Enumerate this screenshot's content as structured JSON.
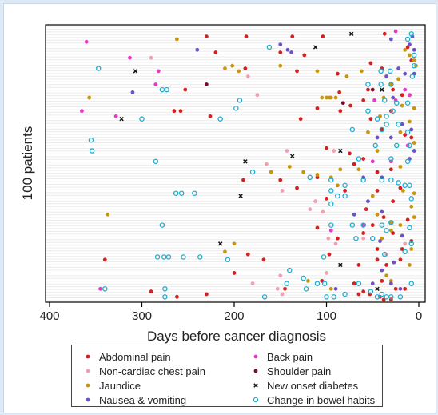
{
  "chart_data": {
    "type": "scatter",
    "xlabel": "Days before cancer diagnosis",
    "ylabel": "100 patients",
    "xlim": [
      0,
      400
    ],
    "x_reversed": true,
    "xticks": [
      "400",
      "300",
      "200",
      "100",
      "0"
    ],
    "ylim": [
      1,
      100
    ],
    "legend_position": "bottom",
    "series": [
      {
        "name": "Abdominal pain",
        "marker": "filled-circle",
        "color": "#d62020",
        "points": [
          [
            230,
            98
          ],
          [
            187,
            98
          ],
          [
            137,
            98
          ],
          [
            104,
            98
          ],
          [
            37,
            99
          ],
          [
            220,
            92
          ],
          [
            150,
            92
          ],
          [
            124,
            91
          ],
          [
            12,
            94
          ],
          [
            8,
            89
          ],
          [
            52,
            88
          ],
          [
            40,
            86
          ],
          [
            253,
            78
          ],
          [
            188,
            86
          ],
          [
            132,
            85
          ],
          [
            88,
            84
          ],
          [
            55,
            78
          ],
          [
            28,
            78
          ],
          [
            86,
            77
          ],
          [
            60,
            74
          ],
          [
            18,
            76
          ],
          [
            265,
            70
          ],
          [
            258,
            70
          ],
          [
            226,
            68
          ],
          [
            128,
            67
          ],
          [
            85,
            70
          ],
          [
            52,
            67
          ],
          [
            110,
            71
          ],
          [
            74,
            72
          ],
          [
            30,
            70
          ],
          [
            40,
            63
          ],
          [
            15,
            61
          ],
          [
            100,
            56
          ],
          [
            75,
            54
          ],
          [
            70,
            50
          ],
          [
            45,
            47
          ],
          [
            30,
            48
          ],
          [
            190,
            44
          ],
          [
            150,
            44
          ],
          [
            132,
            41
          ],
          [
            100,
            37
          ],
          [
            45,
            40
          ],
          [
            20,
            41
          ],
          [
            28,
            36
          ],
          [
            57,
            33
          ],
          [
            38,
            30
          ],
          [
            12,
            29
          ],
          [
            50,
            27
          ],
          [
            110,
            26
          ],
          [
            88,
            22
          ],
          [
            60,
            24
          ],
          [
            28,
            24
          ],
          [
            8,
            21
          ],
          [
            45,
            18
          ],
          [
            18,
            18
          ],
          [
            340,
            14
          ],
          [
            185,
            16
          ],
          [
            168,
            14
          ],
          [
            45,
            14
          ],
          [
            20,
            14
          ],
          [
            65,
            12
          ],
          [
            35,
            12
          ],
          [
            105,
            6
          ],
          [
            70,
            5
          ],
          [
            40,
            6
          ],
          [
            145,
            3
          ],
          [
            25,
            3
          ],
          [
            15,
            3
          ],
          [
            60,
            2
          ],
          [
            290,
            2
          ],
          [
            230,
            1
          ],
          [
            65,
            1
          ],
          [
            53,
            1
          ],
          [
            262,
            0
          ],
          [
            42,
            0
          ],
          [
            30,
            -1
          ],
          [
            38,
            -3
          ],
          [
            200,
            9
          ],
          [
            97,
            16
          ],
          [
            80,
            40
          ],
          [
            110,
            45
          ],
          [
            60,
            52
          ],
          [
            8,
            60
          ]
        ]
      },
      {
        "name": "Non-cardiac chest pain",
        "marker": "filled-circle",
        "color": "#f2a0b0",
        "points": [
          [
            290,
            90
          ],
          [
            185,
            83
          ],
          [
            175,
            76
          ],
          [
            165,
            50
          ],
          [
            143,
            55
          ],
          [
            92,
            55
          ],
          [
            148,
            40
          ],
          [
            112,
            36
          ],
          [
            104,
            32
          ],
          [
            118,
            33
          ],
          [
            98,
            22
          ],
          [
            90,
            20
          ],
          [
            60,
            22
          ],
          [
            15,
            20
          ],
          [
            35,
            16
          ],
          [
            100,
            9
          ],
          [
            150,
            8
          ],
          [
            153,
            3
          ],
          [
            180,
            5
          ],
          [
            148,
            1
          ]
        ]
      },
      {
        "name": "Jaundice",
        "marker": "filled-circle",
        "color": "#c8960a",
        "points": [
          [
            262,
            97
          ],
          [
            210,
            86
          ],
          [
            202,
            87
          ],
          [
            195,
            85
          ],
          [
            150,
            87
          ],
          [
            110,
            85
          ],
          [
            62,
            85
          ],
          [
            15,
            93
          ],
          [
            10,
            91
          ],
          [
            5,
            89
          ],
          [
            3,
            87
          ],
          [
            357,
            75
          ],
          [
            105,
            75
          ],
          [
            100,
            75
          ],
          [
            97,
            75
          ],
          [
            95,
            75
          ],
          [
            90,
            75
          ],
          [
            42,
            68
          ],
          [
            38,
            75
          ],
          [
            30,
            80
          ],
          [
            22,
            82
          ],
          [
            10,
            66
          ],
          [
            5,
            71
          ],
          [
            5,
            58
          ],
          [
            20,
            62
          ],
          [
            45,
            55
          ],
          [
            65,
            48
          ],
          [
            85,
            48
          ],
          [
            95,
            45
          ],
          [
            110,
            46
          ],
          [
            88,
            42
          ],
          [
            125,
            47
          ],
          [
            140,
            49
          ],
          [
            160,
            47
          ],
          [
            20,
            49
          ],
          [
            17,
            40
          ],
          [
            50,
            38
          ],
          [
            8,
            34
          ],
          [
            5,
            39
          ],
          [
            337,
            31
          ],
          [
            45,
            31
          ],
          [
            30,
            28
          ],
          [
            5,
            30
          ],
          [
            30,
            25
          ],
          [
            20,
            27
          ],
          [
            40,
            22
          ],
          [
            8,
            18
          ],
          [
            200,
            20
          ],
          [
            210,
            17
          ],
          [
            10,
            12
          ],
          [
            35,
            8
          ],
          [
            30,
            6
          ],
          [
            95,
            3
          ],
          [
            120,
            6
          ],
          [
            55,
            62
          ],
          [
            78,
            83
          ],
          [
            18,
            72
          ],
          [
            10,
            76
          ]
        ]
      },
      {
        "name": "Nausea & vomiting",
        "marker": "filled-circle",
        "color": "#6e50c8",
        "points": [
          [
            7,
            98
          ],
          [
            10,
            95
          ],
          [
            30,
            97
          ],
          [
            5,
            93
          ],
          [
            240,
            93
          ],
          [
            142,
            93
          ],
          [
            138,
            92
          ],
          [
            35,
            83
          ],
          [
            22,
            86
          ],
          [
            15,
            84
          ],
          [
            5,
            84
          ],
          [
            310,
            77
          ],
          [
            28,
            75
          ],
          [
            18,
            65
          ],
          [
            8,
            63
          ],
          [
            5,
            55
          ],
          [
            30,
            60
          ],
          [
            10,
            52
          ],
          [
            40,
            45
          ],
          [
            55,
            36
          ],
          [
            70,
            31
          ],
          [
            40,
            32
          ],
          [
            42,
            21
          ],
          [
            18,
            23
          ],
          [
            27,
            13
          ],
          [
            40,
            10
          ],
          [
            50,
            5
          ],
          [
            30,
            5
          ],
          [
            20,
            3
          ],
          [
            90,
            3
          ],
          [
            150,
            95
          ],
          [
            45,
            60
          ],
          [
            60,
            45
          ]
        ]
      },
      {
        "name": "Back pain",
        "marker": "filled-circle",
        "color": "#e838c8",
        "points": [
          [
            360,
            96
          ],
          [
            313,
            90
          ],
          [
            285,
            80
          ],
          [
            282,
            85
          ],
          [
            365,
            70
          ],
          [
            328,
            68
          ],
          [
            15,
            78
          ],
          [
            10,
            76
          ],
          [
            48,
            74
          ],
          [
            25,
            74
          ],
          [
            50,
            51
          ],
          [
            30,
            51
          ],
          [
            345,
            3
          ],
          [
            95,
            25
          ],
          [
            60,
            27
          ],
          [
            12,
            57
          ],
          [
            25,
            100
          ]
        ]
      },
      {
        "name": "Shoulder pain",
        "marker": "filled-circle",
        "color": "#7a0a2a",
        "points": [
          [
            230,
            80
          ],
          [
            82,
            73
          ],
          [
            50,
            78
          ]
        ]
      },
      {
        "name": "New onset diabetes",
        "marker": "x",
        "color": "#111111",
        "points": [
          [
            73,
            99
          ],
          [
            112,
            94
          ],
          [
            307,
            85
          ],
          [
            322,
            67
          ],
          [
            188,
            51
          ],
          [
            137,
            53
          ],
          [
            85,
            55
          ],
          [
            193,
            38
          ],
          [
            215,
            20
          ],
          [
            85,
            12
          ],
          [
            40,
            78
          ],
          [
            45,
            3
          ]
        ]
      },
      {
        "name": "Change in bowel habits",
        "marker": "open-circle",
        "color": "#1aaed0",
        "points": [
          [
            8,
            99
          ],
          [
            12,
            97
          ],
          [
            162,
            94
          ],
          [
            5,
            91
          ],
          [
            5,
            87
          ],
          [
            31,
            85
          ],
          [
            41,
            85
          ],
          [
            7,
            83
          ],
          [
            347,
            86
          ],
          [
            278,
            78
          ],
          [
            273,
            78
          ],
          [
            30,
            80
          ],
          [
            41,
            80
          ],
          [
            55,
            80
          ],
          [
            37,
            74
          ],
          [
            24,
            73
          ],
          [
            12,
            73
          ],
          [
            28,
            70
          ],
          [
            35,
            68
          ],
          [
            45,
            67
          ],
          [
            55,
            70
          ],
          [
            198,
            71
          ],
          [
            194,
            74
          ],
          [
            300,
            67
          ],
          [
            215,
            67
          ],
          [
            22,
            65
          ],
          [
            35,
            65
          ],
          [
            40,
            63
          ],
          [
            72,
            63
          ],
          [
            47,
            57
          ],
          [
            10,
            57
          ],
          [
            355,
            59
          ],
          [
            354,
            55
          ],
          [
            24,
            57
          ],
          [
            285,
            51
          ],
          [
            180,
            47
          ],
          [
            12,
            51
          ],
          [
            65,
            52
          ],
          [
            30,
            52
          ],
          [
            95,
            44
          ],
          [
            95,
            40
          ],
          [
            80,
            42
          ],
          [
            95,
            35
          ],
          [
            60,
            44
          ],
          [
            40,
            44
          ],
          [
            30,
            44
          ],
          [
            22,
            43
          ],
          [
            15,
            42
          ],
          [
            10,
            42
          ],
          [
            88,
            38
          ],
          [
            263,
            39
          ],
          [
            257,
            39
          ],
          [
            243,
            39
          ],
          [
            8,
            37
          ],
          [
            278,
            27
          ],
          [
            95,
            27
          ],
          [
            72,
            27
          ],
          [
            60,
            27
          ],
          [
            40,
            27
          ],
          [
            30,
            28
          ],
          [
            10,
            26
          ],
          [
            68,
            22
          ],
          [
            50,
            22
          ],
          [
            35,
            25
          ],
          [
            8,
            20
          ],
          [
            283,
            15
          ],
          [
            276,
            15
          ],
          [
            271,
            15
          ],
          [
            255,
            15
          ],
          [
            237,
            15
          ],
          [
            207,
            14
          ],
          [
            37,
            16
          ],
          [
            15,
            17
          ],
          [
            140,
            10
          ],
          [
            125,
            7
          ],
          [
            143,
            5
          ],
          [
            122,
            3
          ],
          [
            100,
            0
          ],
          [
            92,
            0
          ],
          [
            80,
            1
          ],
          [
            275,
            3
          ],
          [
            275,
            0
          ],
          [
            110,
            5
          ],
          [
            102,
            5
          ],
          [
            8,
            5
          ],
          [
            52,
            2
          ],
          [
            45,
            0
          ],
          [
            40,
            1
          ],
          [
            35,
            0
          ],
          [
            30,
            0
          ],
          [
            20,
            0
          ],
          [
            340,
            3
          ],
          [
            167,
            0
          ],
          [
            65,
            5
          ],
          [
            103,
            15
          ],
          [
            118,
            45
          ],
          [
            80,
            38
          ],
          [
            12,
            62
          ]
        ]
      }
    ]
  }
}
